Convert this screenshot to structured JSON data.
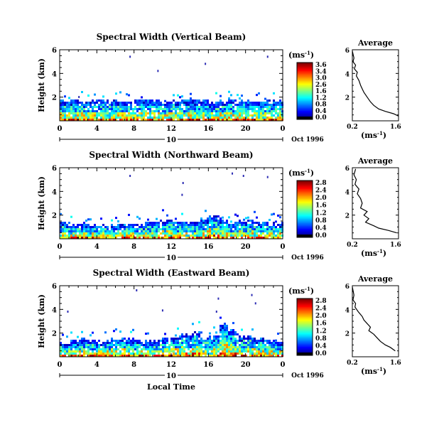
{
  "figure": {
    "xlabel": "Local Time",
    "ylabel": "Height (km)",
    "date_label": "Oct 1996",
    "day_label": "10"
  },
  "chart_data": [
    {
      "type": "heatmap",
      "title": "Spectral Width (Vertical Beam)",
      "ylabel": "Height (km)",
      "xlim": [
        0,
        24
      ],
      "ylim": [
        0,
        6
      ],
      "xticks": [
        "0",
        "4",
        "8",
        "12",
        "16",
        "20",
        "0"
      ],
      "yticks": [
        "2",
        "4",
        "6"
      ],
      "colorbar": {
        "unit": "(ms",
        "unit_exp": "-1",
        "unit_close": ")",
        "ticks": [
          "3.6",
          "3.4",
          "3.0",
          "2.6",
          "1.6",
          "1.2",
          "0.8",
          "0.4",
          "0.0"
        ]
      },
      "clutter_top_km": [
        1.6,
        1.7,
        1.5,
        1.6,
        1.7,
        1.6,
        1.5,
        1.6,
        1.7,
        1.6,
        1.6,
        1.5,
        1.6,
        1.7,
        1.6,
        1.6,
        1.5,
        1.6,
        1.7,
        1.6,
        1.6,
        1.5,
        1.6,
        1.6
      ],
      "sparse_echoes": [
        {
          "t": 7.5,
          "h": 5.5
        },
        {
          "t": 10.5,
          "h": 4.3
        },
        {
          "t": 15.6,
          "h": 4.9
        },
        {
          "t": 22.3,
          "h": 5.5
        },
        {
          "t": 2.0,
          "h": 2.1
        }
      ],
      "average": {
        "title": "Average",
        "xlabel": "(ms",
        "xlabel_exp": "-1",
        "xlabel_close": ")",
        "xlim": [
          0.2,
          1.6
        ],
        "ylim": [
          0,
          6
        ],
        "xticks": [
          "0.2",
          "1.6"
        ],
        "yticks": [
          "2",
          "4",
          "6"
        ],
        "profile": [
          [
            0.2,
            5.9
          ],
          [
            0.25,
            5.3
          ],
          [
            0.22,
            5.0
          ],
          [
            0.3,
            4.7
          ],
          [
            0.26,
            4.4
          ],
          [
            0.35,
            4.1
          ],
          [
            0.32,
            3.8
          ],
          [
            0.4,
            3.4
          ],
          [
            0.45,
            3.0
          ],
          [
            0.5,
            2.7
          ],
          [
            0.55,
            2.4
          ],
          [
            0.65,
            2.0
          ],
          [
            0.75,
            1.6
          ],
          [
            0.85,
            1.3
          ],
          [
            1.0,
            1.0
          ],
          [
            1.2,
            0.8
          ],
          [
            1.45,
            0.6
          ],
          [
            1.6,
            0.4
          ]
        ]
      }
    },
    {
      "type": "heatmap",
      "title": "Spectral Width (Northward Beam)",
      "ylabel": "Height (km)",
      "xlim": [
        0,
        24
      ],
      "ylim": [
        0,
        6
      ],
      "xticks": [
        "0",
        "4",
        "8",
        "12",
        "16",
        "20",
        "0"
      ],
      "yticks": [
        "2",
        "4",
        "6"
      ],
      "colorbar": {
        "unit": "(ms",
        "unit_exp": "-1",
        "unit_close": ")",
        "ticks": [
          "2.8",
          "2.4",
          "2.0",
          "1.6",
          "1.2",
          "0.8",
          "0.4",
          "0.0"
        ]
      },
      "clutter_top_km": [
        1.2,
        1.1,
        1.2,
        1.1,
        1.1,
        1.0,
        1.1,
        1.2,
        1.1,
        1.3,
        1.4,
        1.5,
        1.4,
        1.3,
        1.4,
        1.6,
        1.9,
        1.5,
        1.3,
        1.4,
        1.5,
        1.3,
        1.2,
        1.2
      ],
      "sparse_echoes": [
        {
          "t": 7.5,
          "h": 5.4
        },
        {
          "t": 13.2,
          "h": 4.8
        },
        {
          "t": 13.1,
          "h": 3.8
        },
        {
          "t": 18.5,
          "h": 5.6
        },
        {
          "t": 19.7,
          "h": 5.4
        },
        {
          "t": 22.3,
          "h": 5.3
        }
      ],
      "average": {
        "title": "Average",
        "xlabel": "(ms",
        "xlabel_exp": "-1",
        "xlabel_close": ")",
        "xlim": [
          0.2,
          1.6
        ],
        "ylim": [
          0,
          6
        ],
        "xticks": [
          "0.2",
          "1.6"
        ],
        "yticks": [
          "2",
          "4",
          "6"
        ],
        "profile": [
          [
            0.3,
            5.9
          ],
          [
            0.25,
            5.4
          ],
          [
            0.32,
            5.0
          ],
          [
            0.28,
            4.6
          ],
          [
            0.4,
            4.2
          ],
          [
            0.35,
            3.8
          ],
          [
            0.45,
            3.4
          ],
          [
            0.5,
            3.0
          ],
          [
            0.45,
            2.6
          ],
          [
            0.65,
            2.3
          ],
          [
            0.55,
            2.0
          ],
          [
            0.7,
            1.7
          ],
          [
            0.6,
            1.4
          ],
          [
            0.85,
            1.1
          ],
          [
            1.0,
            0.9
          ],
          [
            1.3,
            0.7
          ],
          [
            1.55,
            0.5
          ]
        ]
      }
    },
    {
      "type": "heatmap",
      "title": "Spectral Width (Eastward Beam)",
      "ylabel": "Height (km)",
      "xlim": [
        0,
        24
      ],
      "ylim": [
        0,
        6
      ],
      "xticks": [
        "0",
        "4",
        "8",
        "12",
        "16",
        "20",
        "0"
      ],
      "yticks": [
        "2",
        "4",
        "6"
      ],
      "colorbar": {
        "unit": "(ms",
        "unit_exp": "-1",
        "unit_close": ")",
        "ticks": [
          "2.8",
          "2.4",
          "2.0",
          "1.6",
          "1.2",
          "0.8",
          "0.4",
          "0.0"
        ]
      },
      "clutter_top_km": [
        1.1,
        1.3,
        1.4,
        1.3,
        1.2,
        1.4,
        1.5,
        1.4,
        1.3,
        1.2,
        1.3,
        1.5,
        1.6,
        1.8,
        2.0,
        1.6,
        1.7,
        2.6,
        2.1,
        1.7,
        1.6,
        1.5,
        1.3,
        1.2
      ],
      "sparse_echoes": [
        {
          "t": 0.8,
          "h": 3.9
        },
        {
          "t": 8.2,
          "h": 5.7
        },
        {
          "t": 11.0,
          "h": 4.0
        },
        {
          "t": 16.8,
          "h": 3.9
        },
        {
          "t": 21.0,
          "h": 4.6
        },
        {
          "t": 20.6,
          "h": 5.3
        },
        {
          "t": 17.0,
          "h": 5.0
        }
      ],
      "average": {
        "title": "Average",
        "xlabel": "(ms",
        "xlabel_exp": "-1",
        "xlabel_close": ")",
        "xlim": [
          0.2,
          1.6
        ],
        "ylim": [
          0,
          6
        ],
        "xticks": [
          "0.2",
          "1.6"
        ],
        "yticks": [
          "2",
          "4",
          "6"
        ],
        "profile": [
          [
            0.2,
            5.9
          ],
          [
            0.25,
            5.2
          ],
          [
            0.22,
            4.8
          ],
          [
            0.3,
            4.5
          ],
          [
            0.28,
            4.2
          ],
          [
            0.38,
            3.8
          ],
          [
            0.5,
            3.4
          ],
          [
            0.55,
            3.1
          ],
          [
            0.65,
            2.8
          ],
          [
            0.75,
            2.5
          ],
          [
            0.7,
            2.2
          ],
          [
            0.85,
            1.9
          ],
          [
            0.95,
            1.6
          ],
          [
            1.05,
            1.3
          ],
          [
            1.2,
            1.0
          ],
          [
            1.35,
            0.8
          ],
          [
            1.5,
            0.5
          ]
        ]
      }
    }
  ]
}
